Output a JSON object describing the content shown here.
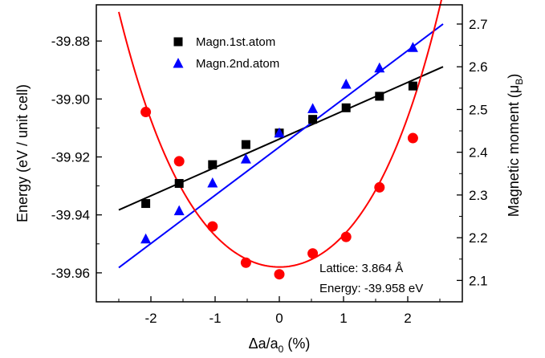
{
  "chart_data": {
    "type": "scatter",
    "title": "",
    "xlabel": "Δa/a0 (%)",
    "xlabel_parts": {
      "main": "Δa/a",
      "sub": "0",
      "tail": " (%)"
    },
    "ylabel": "Energy (eV / unit cell)",
    "y2label": "Magnetic moment (μB)",
    "y2label_parts": {
      "main": "Magnetic moment (μ",
      "sub": "B",
      "tail": ")"
    },
    "xlim": [
      -2.85,
      2.85
    ],
    "ylim": [
      -39.97,
      -39.8675
    ],
    "y2lim": [
      2.05,
      2.745
    ],
    "x_ticks": [
      -2,
      -1,
      0,
      1,
      2
    ],
    "x_tick_labels": [
      "-2",
      "-1",
      "0",
      "1",
      "2"
    ],
    "y_ticks": [
      -39.88,
      -39.9,
      -39.92,
      -39.94,
      -39.96
    ],
    "y_tick_labels": [
      "-39.88",
      "-39.90",
      "-39.92",
      "-39.94",
      "-39.96"
    ],
    "y2_ticks": [
      2.1,
      2.2,
      2.3,
      2.4,
      2.5,
      2.6,
      2.7
    ],
    "y2_tick_labels": [
      "2.1",
      "2.2",
      "2.3",
      "2.4",
      "2.5",
      "2.6",
      "2.7"
    ],
    "legend": {
      "position": "top-left",
      "entries": [
        {
          "label": "Magn.1st.atom",
          "marker": "square",
          "color": "#000000"
        },
        {
          "label": "Magn.2nd.atom",
          "marker": "triangle",
          "color": "#0000ff"
        }
      ]
    },
    "series": [
      {
        "name": "Magn.1st.atom",
        "axis": "right",
        "marker": "square",
        "color": "#000000",
        "x": [
          -2.08,
          -1.56,
          -1.04,
          -0.52,
          0.0,
          0.52,
          1.04,
          1.56,
          2.08
        ],
        "y": [
          2.28,
          2.327,
          2.371,
          2.418,
          2.445,
          2.477,
          2.504,
          2.531,
          2.555
        ]
      },
      {
        "name": "Magn.2nd.atom",
        "axis": "right",
        "marker": "triangle",
        "color": "#0000ff",
        "x": [
          -2.08,
          -1.56,
          -1.04,
          -0.52,
          0.0,
          0.52,
          1.04,
          1.56,
          2.08
        ],
        "y": [
          2.197,
          2.263,
          2.328,
          2.384,
          2.445,
          2.502,
          2.559,
          2.597,
          2.645
        ]
      },
      {
        "name": "",
        "axis": "left",
        "marker": "circle",
        "color": "#ff0000",
        "x": [
          -2.08,
          -1.56,
          -1.04,
          -0.52,
          0.0,
          0.52,
          1.04,
          1.56,
          2.08
        ],
        "y": [
          -39.9045,
          -39.9215,
          -39.944,
          -39.9565,
          -39.9605,
          -39.9533,
          -39.9476,
          -39.9305,
          -39.9135
        ]
      }
    ],
    "fits": [
      {
        "series": "Magn.1st.atom",
        "axis": "right",
        "kind": "linear",
        "color": "#000000",
        "x_range": [
          -2.5,
          2.55
        ],
        "y_at_range": [
          2.265,
          2.6
        ]
      },
      {
        "series": "Magn.2nd.atom",
        "axis": "right",
        "kind": "linear",
        "color": "#0000ff",
        "x_range": [
          -2.5,
          2.55
        ],
        "y_at_range": [
          2.13,
          2.7
        ]
      },
      {
        "series": "",
        "axis": "left",
        "kind": "polynomial",
        "color": "#ff0000",
        "x_range": [
          -2.5,
          2.55
        ],
        "coefficients": [
          -39.958,
          0.0,
          0.0103,
          6e-05,
          0.00063
        ]
      }
    ],
    "annotations": [
      "Lattice: 3.864 Å",
      "Energy: -39.958 eV"
    ],
    "grid": false
  }
}
